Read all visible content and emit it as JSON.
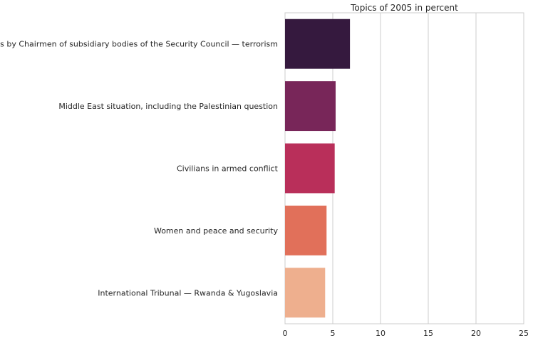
{
  "chart_data": {
    "type": "bar",
    "orientation": "horizontal",
    "title": "Topics of 2005 in percent",
    "xlabel": "",
    "ylabel": "",
    "categories": [
      "Briefings by Chairmen of subsidiary bodies of the Security Council — terrorism",
      "Middle East situation, including the Palestinian question",
      "Civilians in armed conflict",
      "Women and peace and security",
      "International Tribunal — Rwanda & Yugoslavia"
    ],
    "values": [
      6.8,
      5.3,
      5.2,
      4.35,
      4.2
    ],
    "colors": [
      "#35193e",
      "#782659",
      "#b92f5a",
      "#e1705a",
      "#eeaf8e"
    ],
    "xlim": [
      0,
      25
    ],
    "xticks": [
      0,
      5,
      10,
      15,
      20,
      25
    ],
    "grid": true,
    "legend": "none"
  }
}
